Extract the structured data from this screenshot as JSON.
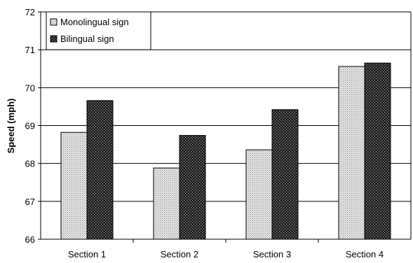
{
  "chart_data": {
    "type": "bar",
    "categories": [
      "Section 1",
      "Section 2",
      "Section 3",
      "Section 4"
    ],
    "series": [
      {
        "name": "Monolingual sign",
        "values": [
          68.82,
          67.88,
          68.36,
          70.56
        ],
        "pattern": "light-dotted"
      },
      {
        "name": "Bilingual sign",
        "values": [
          69.66,
          68.74,
          69.42,
          70.65
        ],
        "pattern": "dark-checkered"
      }
    ],
    "title": "",
    "xlabel": "",
    "ylabel": "Speed (mph)",
    "ylim": [
      66,
      72
    ],
    "yticks": [
      66,
      67,
      68,
      69,
      70,
      71,
      72
    ],
    "grid": true,
    "legend_position": "top-left"
  }
}
